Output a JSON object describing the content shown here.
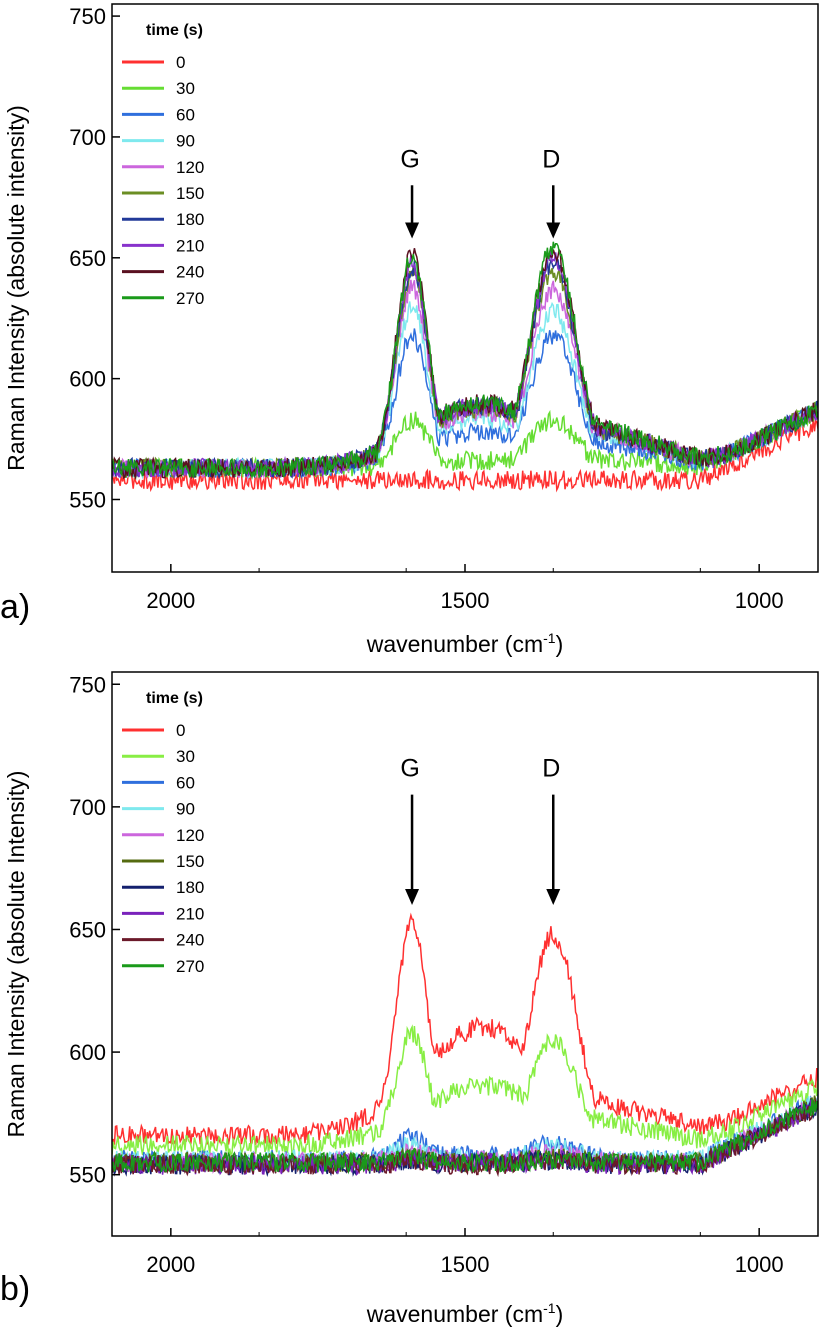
{
  "chart_data": [
    {
      "type": "line",
      "panel_label": "a)",
      "xlabel": "wavenumber (cm",
      "xlabel_sup": "-1",
      "xlabel_close": ")",
      "ylabel": "Raman Intensity (absolute intensity)",
      "xlim": [
        2100,
        900
      ],
      "x_reversed": true,
      "ylim": [
        520,
        755
      ],
      "xticks": [
        2000,
        1500,
        1000
      ],
      "yticks": [
        550,
        600,
        650,
        700,
        750
      ],
      "grid": false,
      "legend_title": "time (s)",
      "legend_position": "top-left",
      "annotations": [
        {
          "text": "G",
          "x": 1590,
          "arrow_from": 680,
          "arrow_to": 658
        },
        {
          "text": "D",
          "x": 1350,
          "arrow_from": 680,
          "arrow_to": 658
        }
      ],
      "series": [
        {
          "name": "0",
          "color": "#ff3030",
          "baseline": 558,
          "g_peak": 0,
          "d_peak": 0,
          "valley": 0,
          "shoulder": 0,
          "noise": 4
        },
        {
          "name": "30",
          "color": "#66dd33",
          "baseline": 563,
          "g_peak": 583,
          "d_peak": 583,
          "valley": 566,
          "shoulder": 568,
          "noise": 4
        },
        {
          "name": "60",
          "color": "#2f6fdd",
          "baseline": 563,
          "g_peak": 618,
          "d_peak": 618,
          "valley": 578,
          "shoulder": 578,
          "noise": 4
        },
        {
          "name": "90",
          "color": "#7fe9ee",
          "baseline": 563,
          "g_peak": 630,
          "d_peak": 628,
          "valley": 583,
          "shoulder": 583,
          "noise": 4
        },
        {
          "name": "120",
          "color": "#cc66dd",
          "baseline": 563,
          "g_peak": 638,
          "d_peak": 637,
          "valley": 586,
          "shoulder": 584,
          "noise": 4
        },
        {
          "name": "150",
          "color": "#6b8e23",
          "baseline": 563,
          "g_peak": 644,
          "d_peak": 645,
          "valley": 588,
          "shoulder": 585,
          "noise": 4
        },
        {
          "name": "180",
          "color": "#223a99",
          "baseline": 563,
          "g_peak": 646,
          "d_peak": 648,
          "valley": 589,
          "shoulder": 585,
          "noise": 4
        },
        {
          "name": "210",
          "color": "#8833cc",
          "baseline": 563,
          "g_peak": 648,
          "d_peak": 650,
          "valley": 589,
          "shoulder": 586,
          "noise": 4
        },
        {
          "name": "240",
          "color": "#5a1020",
          "baseline": 563,
          "g_peak": 651,
          "d_peak": 653,
          "valley": 590,
          "shoulder": 586,
          "noise": 4
        },
        {
          "name": "270",
          "color": "#1a9a1a",
          "baseline": 563,
          "g_peak": 650,
          "d_peak": 655,
          "valley": 590,
          "shoulder": 587,
          "noise": 4
        }
      ]
    },
    {
      "type": "line",
      "panel_label": "b)",
      "xlabel": "wavenumber (cm",
      "xlabel_sup": "-1",
      "xlabel_close": ")",
      "ylabel": "Raman Intensity (absolute Intensity)",
      "xlim": [
        2100,
        900
      ],
      "x_reversed": true,
      "ylim": [
        525,
        755
      ],
      "xticks": [
        2000,
        1500,
        1000
      ],
      "yticks": [
        550,
        600,
        650,
        700,
        750
      ],
      "grid": false,
      "legend_title": "time (s)",
      "legend_position": "top-left",
      "annotations": [
        {
          "text": "G",
          "x": 1590,
          "arrow_from": 705,
          "arrow_to": 660
        },
        {
          "text": "D",
          "x": 1350,
          "arrow_from": 705,
          "arrow_to": 660
        }
      ],
      "series": [
        {
          "name": "0",
          "color": "#ff3030",
          "baseline": 566,
          "g_peak": 652,
          "d_peak": 648,
          "valley": 610,
          "shoulder": 585,
          "noise": 4
        },
        {
          "name": "30",
          "color": "#88ee44",
          "baseline": 562,
          "g_peak": 608,
          "d_peak": 605,
          "valley": 586,
          "shoulder": 576,
          "noise": 4
        },
        {
          "name": "60",
          "color": "#2f6fdd",
          "baseline": 556,
          "g_peak": 565,
          "d_peak": 563,
          "valley": 558,
          "shoulder": 556,
          "noise": 4
        },
        {
          "name": "90",
          "color": "#7fe9ee",
          "baseline": 556,
          "g_peak": 562,
          "d_peak": 561,
          "valley": 557,
          "shoulder": 556,
          "noise": 4
        },
        {
          "name": "120",
          "color": "#cc66dd",
          "baseline": 555,
          "g_peak": 559,
          "d_peak": 559,
          "valley": 556,
          "shoulder": 555,
          "noise": 4
        },
        {
          "name": "150",
          "color": "#556b10",
          "baseline": 555,
          "g_peak": 557,
          "d_peak": 557,
          "valley": 555,
          "shoulder": 555,
          "noise": 4
        },
        {
          "name": "180",
          "color": "#14206e",
          "baseline": 554,
          "g_peak": 556,
          "d_peak": 556,
          "valley": 555,
          "shoulder": 554,
          "noise": 4
        },
        {
          "name": "210",
          "color": "#7a22bb",
          "baseline": 554,
          "g_peak": 556,
          "d_peak": 556,
          "valley": 555,
          "shoulder": 554,
          "noise": 4
        },
        {
          "name": "240",
          "color": "#6b1a2a",
          "baseline": 554,
          "g_peak": 556,
          "d_peak": 556,
          "valley": 554,
          "shoulder": 554,
          "noise": 4
        },
        {
          "name": "270",
          "color": "#1a9a1a",
          "baseline": 555,
          "g_peak": 557,
          "d_peak": 556,
          "valley": 555,
          "shoulder": 555,
          "noise": 4
        }
      ]
    }
  ]
}
